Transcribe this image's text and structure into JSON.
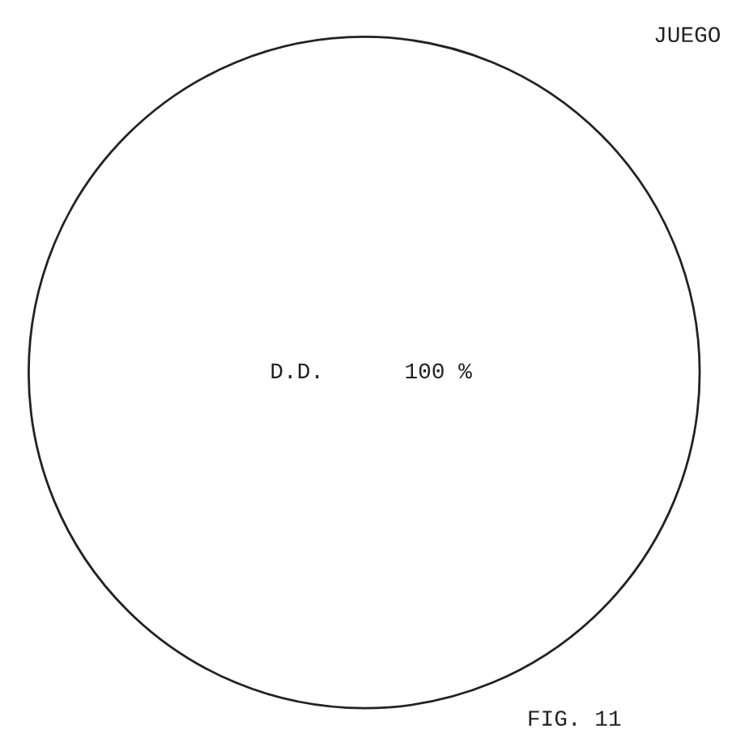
{
  "chart_data": {
    "type": "pie",
    "title": "JUEGO",
    "categories": [
      "D.D."
    ],
    "values": [
      100
    ],
    "colors": [
      "#ffffff"
    ],
    "value_labels": [
      "100 %"
    ],
    "annotations": [
      "FIG. 11"
    ]
  }
}
